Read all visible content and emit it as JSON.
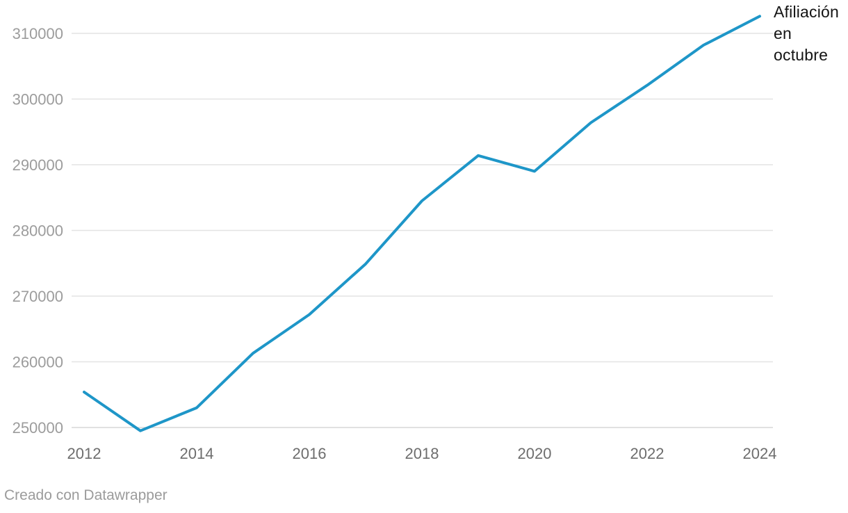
{
  "chart_data": {
    "type": "line",
    "title": "",
    "x": [
      2012,
      2013,
      2014,
      2015,
      2016,
      2017,
      2018,
      2019,
      2020,
      2021,
      2022,
      2023,
      2024
    ],
    "series": [
      {
        "name": "Afiliación en octubre",
        "values": [
          255400,
          249500,
          253000,
          261300,
          267200,
          274900,
          284500,
          291400,
          289000,
          296400,
          302100,
          308200,
          312600
        ]
      }
    ],
    "y_ticks": [
      250000,
      260000,
      270000,
      280000,
      290000,
      300000,
      310000
    ],
    "y_tick_labels": [
      "250000",
      "260000",
      "270000",
      "280000",
      "290000",
      "300000",
      "310000"
    ],
    "x_ticks": [
      2012,
      2014,
      2016,
      2018,
      2020,
      2022,
      2024
    ],
    "x_tick_labels": [
      "2012",
      "2014",
      "2016",
      "2018",
      "2020",
      "2022",
      "2024"
    ],
    "xlim": [
      2012,
      2024
    ],
    "ylim": [
      250000,
      310000
    ],
    "grid": "horizontal",
    "legend_position": "line-end-right",
    "annotation_lines": [
      "Afiliación",
      "en",
      "octubre"
    ],
    "colors": {
      "line": "#1e96c8",
      "gridline": "#e3e3e3",
      "baseline": "#d7d7d7",
      "y_tick_text": "#9c9c9c",
      "x_tick_text": "#6d6d6d",
      "annotation_text": "#141414",
      "footer_text": "#9b9b9b"
    }
  },
  "footer": {
    "text": "Creado con Datawrapper"
  }
}
